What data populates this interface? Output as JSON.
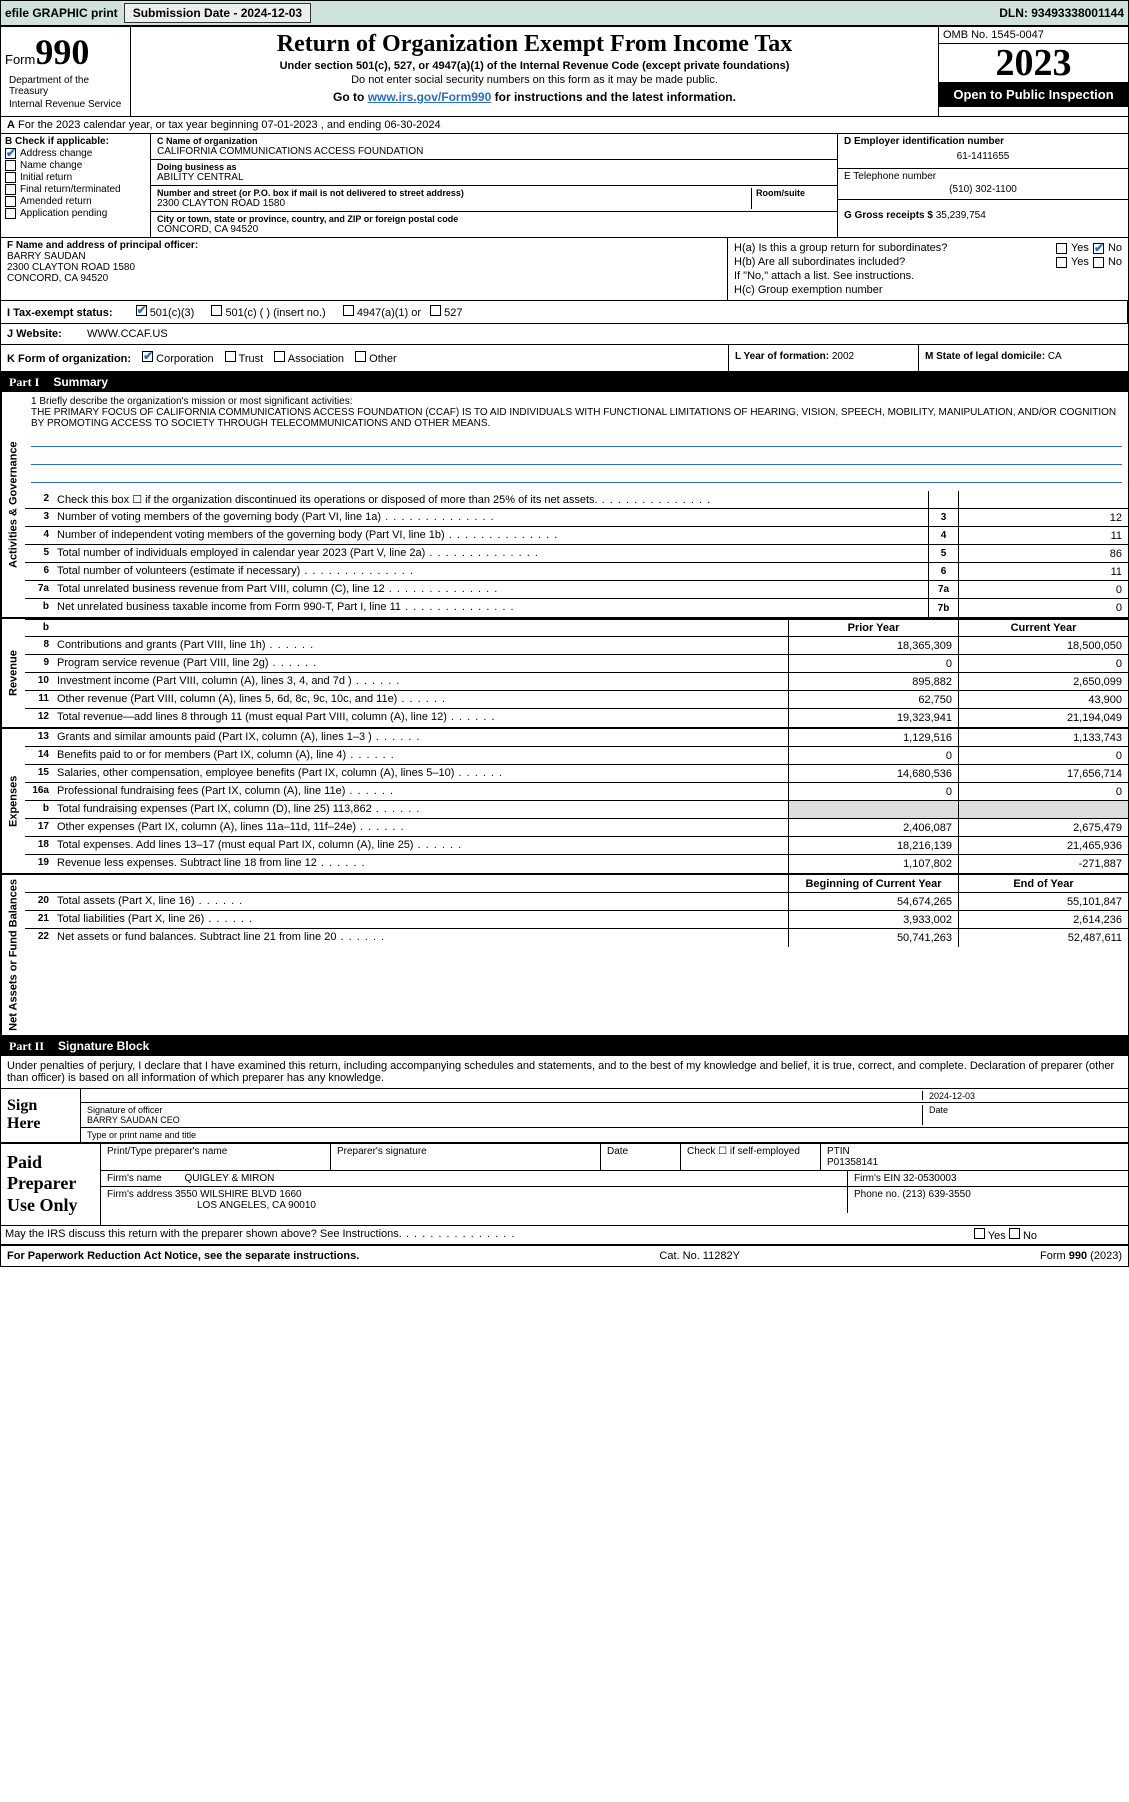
{
  "topbar": {
    "efile": "efile GRAPHIC print",
    "submission_lbl": "Submission Date - 2024-12-03",
    "dln_lbl": "DLN: 93493338001144"
  },
  "header": {
    "form_word": "Form",
    "form_num": "990",
    "title": "Return of Organization Exempt From Income Tax",
    "sub1": "Under section 501(c), 527, or 4947(a)(1) of the Internal Revenue Code (except private foundations)",
    "sub2": "Do not enter social security numbers on this form as it may be made public.",
    "go": "Go to www.irs.gov/Form990 for instructions and the latest information.",
    "go_prefix": "Go to ",
    "go_link": "www.irs.gov/Form990",
    "go_suffix": " for instructions and the latest information.",
    "dept": "Department of the Treasury",
    "irs": "Internal Revenue Service",
    "omb": "OMB No. 1545-0047",
    "year": "2023",
    "inspect": "Open to Public Inspection"
  },
  "rowA": {
    "prefix": "A",
    "text": "For the 2023 calendar year, or tax year beginning 07-01-2023   , and ending 06-30-2024"
  },
  "colB": {
    "lbl": "B Check if applicable:",
    "items": [
      "Address change",
      "Name change",
      "Initial return",
      "Final return/terminated",
      "Amended return",
      "Application pending"
    ],
    "checked": [
      true,
      false,
      false,
      false,
      false,
      false
    ]
  },
  "colC": {
    "name_lbl": "C Name of organization",
    "name": "CALIFORNIA COMMUNICATIONS ACCESS FOUNDATION",
    "dba_lbl": "Doing business as",
    "dba": "ABILITY CENTRAL",
    "street_lbl": "Number and street (or P.O. box if mail is not delivered to street address)",
    "room_lbl": "Room/suite",
    "street": "2300 CLAYTON ROAD 1580",
    "city_lbl": "City or town, state or province, country, and ZIP or foreign postal code",
    "city": "CONCORD, CA  94520"
  },
  "colD": {
    "ein_lbl": "D Employer identification number",
    "ein": "61-1411655",
    "tel_lbl": "E Telephone number",
    "tel": "(510) 302-1100",
    "gross_lbl": "G Gross receipts $",
    "gross": "35,239,754"
  },
  "rowF": {
    "lbl": "F Name and address of principal officer:",
    "name": "BARRY SAUDAN",
    "street": "2300 CLAYTON ROAD 1580",
    "city": "CONCORD, CA  94520"
  },
  "rowH": {
    "ha": "H(a)  Is this a group return for subordinates?",
    "hb": "H(b)  Are all subordinates included?",
    "hb2": "If \"No,\" attach a list. See instructions.",
    "hc": "H(c)  Group exemption number ",
    "yes": "Yes",
    "no": "No"
  },
  "rowI": {
    "lbl": "I   Tax-exempt status:",
    "opts": [
      "501(c)(3)",
      "501(c) (   ) (insert no.)",
      "4947(a)(1) or",
      "527"
    ]
  },
  "rowJ": {
    "lbl": "J   Website:",
    "val": "WWW.CCAF.US"
  },
  "rowK": {
    "lbl": "K Form of organization:",
    "opts": [
      "Corporation",
      "Trust",
      "Association",
      "Other"
    ]
  },
  "rowL": {
    "lbl": "L Year of formation:",
    "val": "2002"
  },
  "rowM": {
    "lbl": "M State of legal domicile:",
    "val": "CA"
  },
  "part1": {
    "pt": "Part I",
    "title": "Summary"
  },
  "mission": {
    "lbl": "1   Briefly describe the organization's mission or most significant activities:",
    "text": "THE PRIMARY FOCUS OF CALIFORNIA COMMUNICATIONS ACCESS FOUNDATION (CCAF) IS TO AID INDIVIDUALS WITH FUNCTIONAL LIMITATIONS OF HEARING, VISION, SPEECH, MOBILITY, MANIPULATION, AND/OR COGNITION BY PROMOTING ACCESS TO SOCIETY THROUGH TELECOMMUNICATIONS AND OTHER MEANS."
  },
  "vtabs": {
    "gov": "Activities & Governance",
    "rev": "Revenue",
    "exp": "Expenses",
    "net": "Net Assets or Fund Balances"
  },
  "gov_rows": [
    {
      "n": "2",
      "t": "Check this box ☐ if the organization discontinued its operations or disposed of more than 25% of its net assets.",
      "box": "",
      "v": ""
    },
    {
      "n": "3",
      "t": "Number of voting members of the governing body (Part VI, line 1a)",
      "box": "3",
      "v": "12"
    },
    {
      "n": "4",
      "t": "Number of independent voting members of the governing body (Part VI, line 1b)",
      "box": "4",
      "v": "11"
    },
    {
      "n": "5",
      "t": "Total number of individuals employed in calendar year 2023 (Part V, line 2a)",
      "box": "5",
      "v": "86"
    },
    {
      "n": "6",
      "t": "Total number of volunteers (estimate if necessary)",
      "box": "6",
      "v": "11"
    },
    {
      "n": "7a",
      "t": "Total unrelated business revenue from Part VIII, column (C), line 12",
      "box": "7a",
      "v": "0"
    },
    {
      "n": "b",
      "t": "Net unrelated business taxable income from Form 990-T, Part I, line 11",
      "box": "7b",
      "v": "0"
    }
  ],
  "two_col_hdr": {
    "prior": "Prior Year",
    "current": "Current Year"
  },
  "rev_rows": [
    {
      "n": "8",
      "t": "Contributions and grants (Part VIII, line 1h)",
      "p": "18,365,309",
      "c": "18,500,050"
    },
    {
      "n": "9",
      "t": "Program service revenue (Part VIII, line 2g)",
      "p": "0",
      "c": "0"
    },
    {
      "n": "10",
      "t": "Investment income (Part VIII, column (A), lines 3, 4, and 7d )",
      "p": "895,882",
      "c": "2,650,099"
    },
    {
      "n": "11",
      "t": "Other revenue (Part VIII, column (A), lines 5, 6d, 8c, 9c, 10c, and 11e)",
      "p": "62,750",
      "c": "43,900"
    },
    {
      "n": "12",
      "t": "Total revenue—add lines 8 through 11 (must equal Part VIII, column (A), line 12)",
      "p": "19,323,941",
      "c": "21,194,049"
    }
  ],
  "exp_rows": [
    {
      "n": "13",
      "t": "Grants and similar amounts paid (Part IX, column (A), lines 1–3 )",
      "p": "1,129,516",
      "c": "1,133,743"
    },
    {
      "n": "14",
      "t": "Benefits paid to or for members (Part IX, column (A), line 4)",
      "p": "0",
      "c": "0"
    },
    {
      "n": "15",
      "t": "Salaries, other compensation, employee benefits (Part IX, column (A), lines 5–10)",
      "p": "14,680,536",
      "c": "17,656,714"
    },
    {
      "n": "16a",
      "t": "Professional fundraising fees (Part IX, column (A), line 11e)",
      "p": "0",
      "c": "0"
    },
    {
      "n": "b",
      "t": "Total fundraising expenses (Part IX, column (D), line 25) 113,862",
      "p": "",
      "c": "",
      "gray": true
    },
    {
      "n": "17",
      "t": "Other expenses (Part IX, column (A), lines 11a–11d, 11f–24e)",
      "p": "2,406,087",
      "c": "2,675,479"
    },
    {
      "n": "18",
      "t": "Total expenses. Add lines 13–17 (must equal Part IX, column (A), line 25)",
      "p": "18,216,139",
      "c": "21,465,936"
    },
    {
      "n": "19",
      "t": "Revenue less expenses. Subtract line 18 from line 12",
      "p": "1,107,802",
      "c": "-271,887"
    }
  ],
  "net_hdr": {
    "beg": "Beginning of Current Year",
    "end": "End of Year"
  },
  "net_rows": [
    {
      "n": "20",
      "t": "Total assets (Part X, line 16)",
      "p": "54,674,265",
      "c": "55,101,847"
    },
    {
      "n": "21",
      "t": "Total liabilities (Part X, line 26)",
      "p": "3,933,002",
      "c": "2,614,236"
    },
    {
      "n": "22",
      "t": "Net assets or fund balances. Subtract line 21 from line 20",
      "p": "50,741,263",
      "c": "52,487,611"
    }
  ],
  "part2": {
    "pt": "Part II",
    "title": "Signature Block"
  },
  "sig": {
    "decl": "Under penalties of perjury, I declare that I have examined this return, including accompanying schedules and statements, and to the best of my knowledge and belief, it is true, correct, and complete. Declaration of preparer (other than officer) is based on all information of which preparer has any knowledge.",
    "sign_here": "Sign Here",
    "sig_officer_lbl": "Signature of officer",
    "sig_officer": "BARRY SAUDAN  CEO",
    "name_title_lbl": "Type or print name and title",
    "date_lbl": "Date",
    "date": "2024-12-03"
  },
  "prep": {
    "lbl": "Paid Preparer Use Only",
    "print_lbl": "Print/Type preparer's name",
    "sig_lbl": "Preparer's signature",
    "date_lbl": "Date",
    "check_lbl": "Check ☐  if self-employed",
    "ptin_lbl": "PTIN",
    "ptin": "P01358141",
    "firm_name_lbl": "Firm's name  ",
    "firm_name": "QUIGLEY & MIRON",
    "firm_ein_lbl": "Firm's EIN ",
    "firm_ein": "32-0530003",
    "firm_addr_lbl": "Firm's address ",
    "firm_addr1": "3550 WILSHIRE BLVD 1660",
    "firm_addr2": "LOS ANGELES, CA  90010",
    "phone_lbl": "Phone no.",
    "phone": "(213) 639-3550"
  },
  "discuss": {
    "text": "May the IRS discuss this return with the preparer shown above? See Instructions.",
    "yes": "Yes",
    "no": "No"
  },
  "footer": {
    "left": "For Paperwork Reduction Act Notice, see the separate instructions.",
    "mid": "Cat. No. 11282Y",
    "right": "Form 990 (2023)"
  }
}
